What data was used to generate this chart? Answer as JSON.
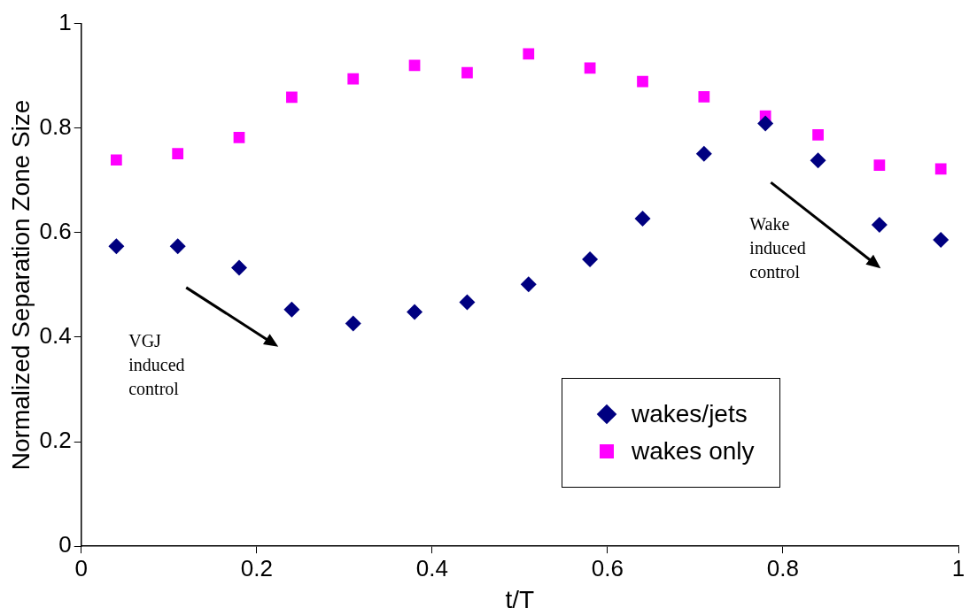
{
  "chart_data": {
    "type": "scatter",
    "xlabel": "t/T",
    "ylabel": "Normalized Separation Zone Size",
    "x": [
      0.04,
      0.11,
      0.18,
      0.24,
      0.31,
      0.38,
      0.44,
      0.51,
      0.58,
      0.64,
      0.71,
      0.78,
      0.84,
      0.91,
      0.98
    ],
    "series": [
      {
        "name": "wakes/jets",
        "color": "#000080",
        "marker": "diamond",
        "values": [
          0.574,
          0.574,
          0.533,
          0.453,
          0.426,
          0.448,
          0.467,
          0.501,
          0.549,
          0.627,
          0.751,
          0.809,
          0.738,
          0.615,
          0.586
        ]
      },
      {
        "name": "wakes only",
        "color": "#ff00ff",
        "marker": "square",
        "values": [
          0.739,
          0.751,
          0.782,
          0.859,
          0.894,
          0.92,
          0.906,
          0.942,
          0.915,
          0.889,
          0.86,
          0.823,
          0.787,
          0.729,
          0.722
        ]
      }
    ],
    "xlim": [
      0,
      1
    ],
    "xticks": [
      0,
      0.2,
      0.4,
      0.6,
      0.8,
      1
    ],
    "ylim": [
      0,
      1
    ],
    "yticks": [
      0,
      0.2,
      0.4,
      0.6,
      0.8,
      1
    ],
    "grid": false,
    "legend": "bottom right",
    "annotations": [
      "VGJ\ninduced\ncontrol",
      "Wake\ninduced\ncontrol"
    ]
  }
}
